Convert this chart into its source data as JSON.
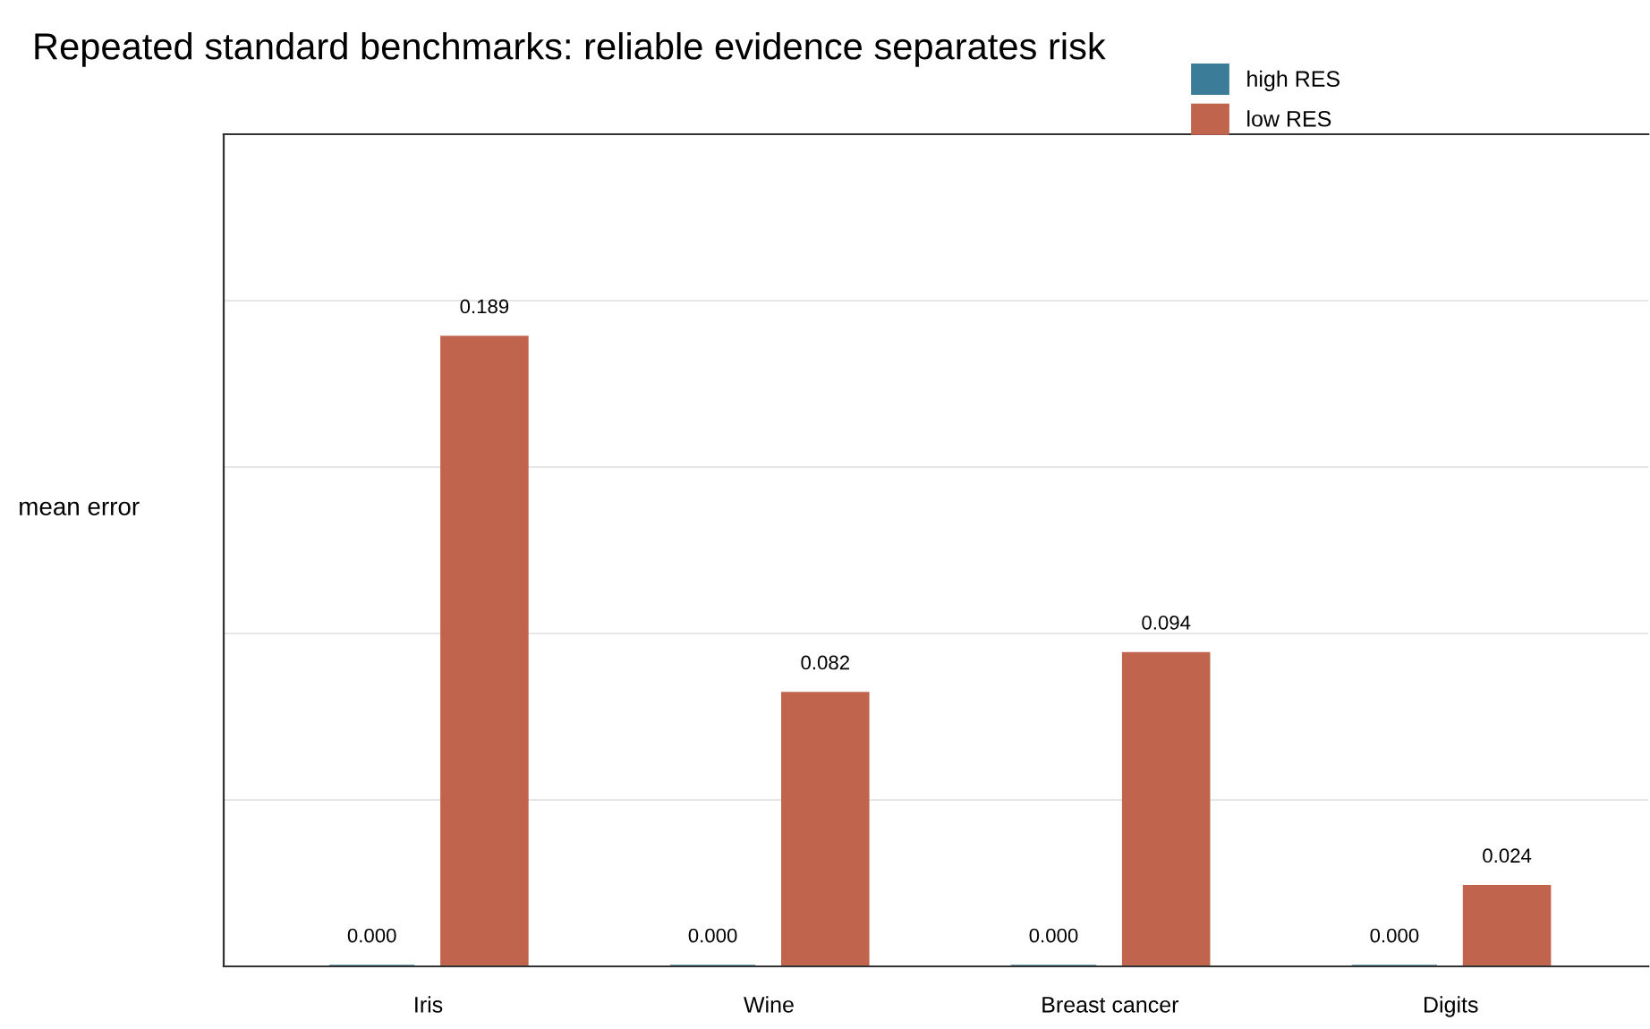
{
  "chart_data": {
    "type": "bar",
    "title": "Repeated standard benchmarks: reliable evidence separates risk",
    "ylabel": "mean error",
    "categories": [
      "Iris",
      "Wine",
      "Breast cancer",
      "Digits"
    ],
    "series": [
      {
        "name": "high RES",
        "color": "#3b7d98",
        "values": [
          0.0,
          0.0,
          0.0,
          0.0
        ],
        "value_labels": [
          "0.000",
          "0.000",
          "0.000",
          "0.000"
        ]
      },
      {
        "name": "low RES",
        "color": "#c0644d",
        "values": [
          0.189,
          0.082,
          0.094,
          0.024
        ],
        "value_labels": [
          "0.189",
          "0.082",
          "0.094",
          "0.024"
        ]
      }
    ],
    "ylim": [
      0,
      0.25
    ],
    "yticks": [
      {
        "value": 0,
        "label": null
      },
      {
        "value": 0.05,
        "label": null
      },
      {
        "value": 0.1,
        "label": null
      },
      {
        "value": 0.15,
        "label": null
      },
      {
        "value": 0.2,
        "label": null
      },
      {
        "value": 0.25,
        "label": null
      }
    ],
    "tick_labels": "x",
    "grid": "y",
    "legend": "top"
  }
}
